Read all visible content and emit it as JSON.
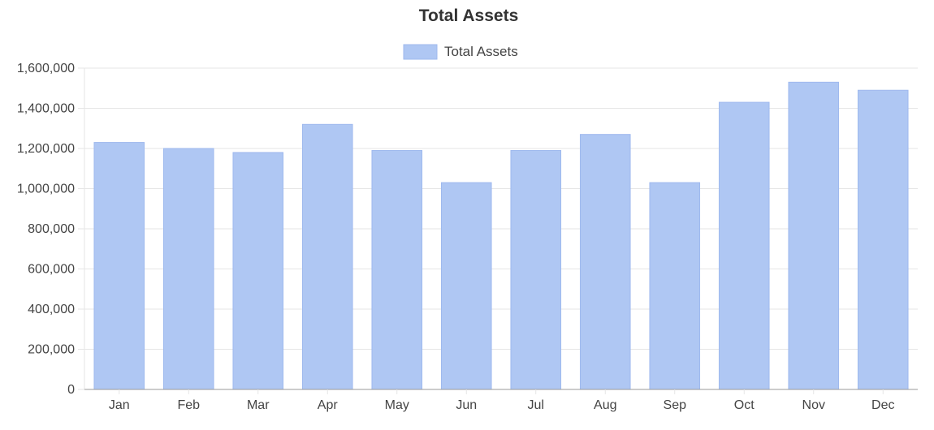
{
  "chart_data": {
    "type": "bar",
    "title": "Total Assets",
    "legend": {
      "position": "top-center",
      "entries": [
        "Total Assets"
      ]
    },
    "categories": [
      "Jan",
      "Feb",
      "Mar",
      "Apr",
      "May",
      "Jun",
      "Jul",
      "Aug",
      "Sep",
      "Oct",
      "Nov",
      "Dec"
    ],
    "series": [
      {
        "name": "Total Assets",
        "color": "#afc7f3",
        "border_color": "#9fb9ee",
        "values": [
          1230000,
          1200000,
          1180000,
          1320000,
          1190000,
          1030000,
          1190000,
          1270000,
          1030000,
          1430000,
          1530000,
          1490000
        ]
      }
    ],
    "ylim": [
      0,
      1600000
    ],
    "yticks": [
      0,
      200000,
      400000,
      600000,
      800000,
      1000000,
      1200000,
      1400000,
      1600000
    ],
    "ytick_labels": [
      "0",
      "200,000",
      "400,000",
      "600,000",
      "800,000",
      "1,000,000",
      "1,200,000",
      "1,400,000",
      "1,600,000"
    ],
    "grid": true,
    "grid_color": "#e6e6e6",
    "axis_color": "#999999"
  }
}
